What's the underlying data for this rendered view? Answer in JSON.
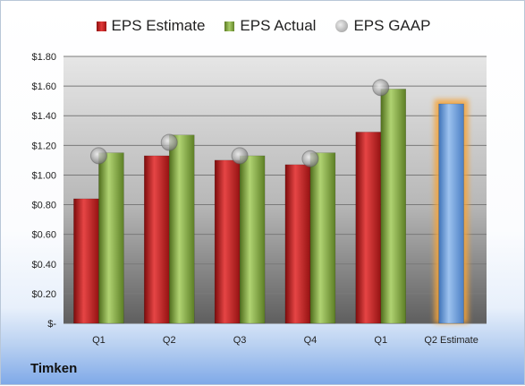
{
  "company": "Timken",
  "legend": [
    {
      "key": "estimate",
      "label": "EPS Estimate"
    },
    {
      "key": "actual",
      "label": "EPS Actual"
    },
    {
      "key": "gaap",
      "label": "EPS GAAP"
    }
  ],
  "colors": {
    "estimate": "#c62020",
    "actual": "#7fa33a",
    "gaap": "#a0a0a0",
    "q2_estimate": "#6ea0da",
    "q2_estimate_glow": "#f5a43b"
  },
  "chart_data": {
    "type": "bar",
    "categories": [
      "Q1",
      "Q2",
      "Q3",
      "Q4",
      "Q1",
      "Q2 Estimate"
    ],
    "ylim": [
      0,
      1.8
    ],
    "yticks": [
      0,
      0.2,
      0.4,
      0.6,
      0.8,
      1.0,
      1.2,
      1.4,
      1.6,
      1.8
    ],
    "ytick_labels": [
      "$-",
      "$0.20",
      "$0.40",
      "$0.60",
      "$0.80",
      "$1.00",
      "$1.20",
      "$1.40",
      "$1.60",
      "$1.80"
    ],
    "grid": true,
    "legend_position": "top",
    "series": [
      {
        "name": "EPS Estimate",
        "values": [
          0.84,
          1.13,
          1.1,
          1.07,
          1.29,
          null
        ]
      },
      {
        "name": "EPS Actual",
        "values": [
          1.15,
          1.27,
          1.13,
          1.15,
          1.58,
          null
        ]
      },
      {
        "name": "EPS GAAP",
        "values": [
          1.13,
          1.22,
          1.13,
          1.11,
          1.59,
          null
        ]
      }
    ],
    "q2_estimate_value": 1.48
  }
}
